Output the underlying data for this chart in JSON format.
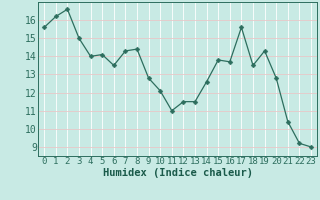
{
  "x": [
    0,
    1,
    2,
    3,
    4,
    5,
    6,
    7,
    8,
    9,
    10,
    11,
    12,
    13,
    14,
    15,
    16,
    17,
    18,
    19,
    20,
    21,
    22,
    23
  ],
  "y": [
    15.6,
    16.2,
    16.6,
    15.0,
    14.0,
    14.1,
    13.5,
    14.3,
    14.4,
    12.8,
    12.1,
    11.0,
    11.5,
    11.5,
    12.6,
    13.8,
    13.7,
    15.6,
    13.5,
    14.3,
    12.8,
    10.4,
    9.2,
    9.0
  ],
  "line_color": "#2d6e5e",
  "marker": "D",
  "marker_size": 2.5,
  "bg_color": "#c8eae4",
  "grid_color": "#e8c8c8",
  "xlabel": "Humidex (Indice chaleur)",
  "xlabel_fontsize": 7.5,
  "xlim": [
    -0.5,
    23.5
  ],
  "ylim": [
    8.5,
    17.0
  ],
  "yticks": [
    9,
    10,
    11,
    12,
    13,
    14,
    15,
    16
  ],
  "xticks": [
    0,
    1,
    2,
    3,
    4,
    5,
    6,
    7,
    8,
    9,
    10,
    11,
    12,
    13,
    14,
    15,
    16,
    17,
    18,
    19,
    20,
    21,
    22,
    23
  ],
  "tick_fontsize": 6.5,
  "ytick_fontsize": 7
}
